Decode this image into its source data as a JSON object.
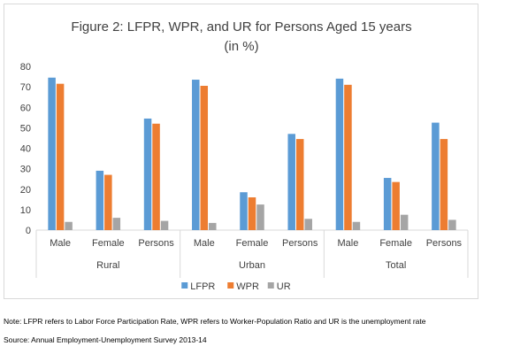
{
  "chart_data": {
    "type": "bar",
    "title_lines": [
      "Figure 2: LFPR, WPR, and UR for Persons Aged 15 years",
      "(in %)"
    ],
    "groups": [
      "Rural",
      "Urban",
      "Total"
    ],
    "categories": [
      "Male",
      "Female",
      "Persons",
      "Male",
      "Female",
      "Persons",
      "Male",
      "Female",
      "Persons"
    ],
    "series": [
      {
        "name": "LFPR",
        "color": "#5b9bd5",
        "values": [
          74.5,
          29,
          54.5,
          73.5,
          18.5,
          47,
          74,
          25.5,
          52.5
        ]
      },
      {
        "name": "WPR",
        "color": "#ed7d31",
        "values": [
          71.5,
          27,
          52,
          70.5,
          16,
          44.5,
          71,
          23.5,
          44.5
        ]
      },
      {
        "name": "UR",
        "color": "#a5a5a5",
        "values": [
          4,
          6,
          4.5,
          3.5,
          12.5,
          5.5,
          4,
          7.5,
          5
        ]
      }
    ],
    "yticks": [
      0,
      10,
      20,
      30,
      40,
      50,
      60,
      70,
      80
    ],
    "ylim": [
      0,
      80
    ],
    "xlabel": "",
    "ylabel": "",
    "grid": false,
    "legend_position": "bottom"
  },
  "notes": {
    "note": "Note: LFPR refers to Labor Force Participation Rate, WPR refers to Worker-Population Ratio and UR is the unemployment rate",
    "source": "Source: Annual Employment-Unemployment Survey 2013-14"
  }
}
